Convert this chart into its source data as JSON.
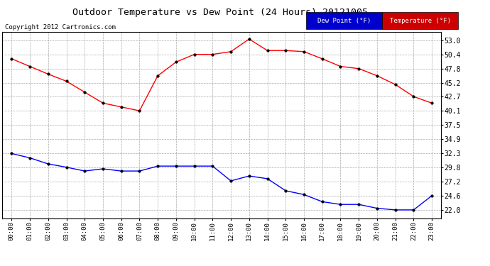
{
  "title": "Outdoor Temperature vs Dew Point (24 Hours) 20121005",
  "copyright": "Copyright 2012 Cartronics.com",
  "x_labels": [
    "00:00",
    "01:00",
    "02:00",
    "03:00",
    "04:00",
    "05:00",
    "06:00",
    "07:00",
    "08:00",
    "09:00",
    "10:00",
    "11:00",
    "12:00",
    "13:00",
    "14:00",
    "15:00",
    "16:00",
    "17:00",
    "18:00",
    "19:00",
    "20:00",
    "21:00",
    "22:00",
    "23:00"
  ],
  "temperature": [
    49.6,
    48.2,
    46.8,
    45.5,
    43.5,
    41.5,
    40.8,
    40.1,
    46.5,
    49.0,
    50.4,
    50.4,
    50.9,
    53.2,
    51.1,
    51.1,
    50.9,
    49.6,
    48.2,
    47.8,
    46.5,
    44.9,
    42.7,
    41.5
  ],
  "dew_point": [
    32.3,
    31.5,
    30.4,
    29.8,
    29.1,
    29.5,
    29.1,
    29.1,
    30.0,
    30.0,
    30.0,
    30.0,
    27.3,
    28.2,
    27.7,
    25.5,
    24.8,
    23.5,
    23.0,
    23.0,
    22.3,
    22.0,
    22.0,
    24.6
  ],
  "temp_color": "#ff0000",
  "dew_color": "#0000ff",
  "background_color": "#ffffff",
  "grid_color": "#aaaaaa",
  "ylim_min": 20.5,
  "ylim_max": 54.5,
  "yticks": [
    22.0,
    24.6,
    27.2,
    29.8,
    32.3,
    34.9,
    37.5,
    40.1,
    42.7,
    45.2,
    47.8,
    50.4,
    53.0
  ],
  "legend_dew_label": "Dew Point (°F)",
  "legend_temp_label": "Temperature (°F)",
  "legend_dew_bg": "#0000cc",
  "legend_temp_bg": "#cc0000"
}
